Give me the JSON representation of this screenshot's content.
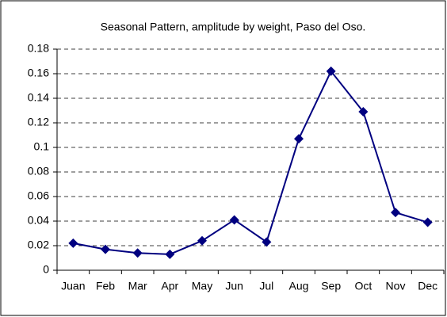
{
  "chart_data": {
    "type": "line",
    "title": "Seasonal Pattern, amplitude by weight, Paso del Oso.",
    "categories": [
      "Juan",
      "Feb",
      "Mar",
      "Apr",
      "May",
      "Jun",
      "Jul",
      "Aug",
      "Sep",
      "Oct",
      "Nov",
      "Dec"
    ],
    "values": [
      0.022,
      0.017,
      0.014,
      0.013,
      0.024,
      0.041,
      0.023,
      0.107,
      0.162,
      0.129,
      0.047,
      0.039
    ],
    "color": "#000080",
    "ylim": [
      0,
      0.18
    ],
    "yticks": [
      0,
      0.02,
      0.04,
      0.06,
      0.08,
      0.1,
      0.12,
      0.14,
      0.16,
      0.18
    ],
    "grid": true
  }
}
